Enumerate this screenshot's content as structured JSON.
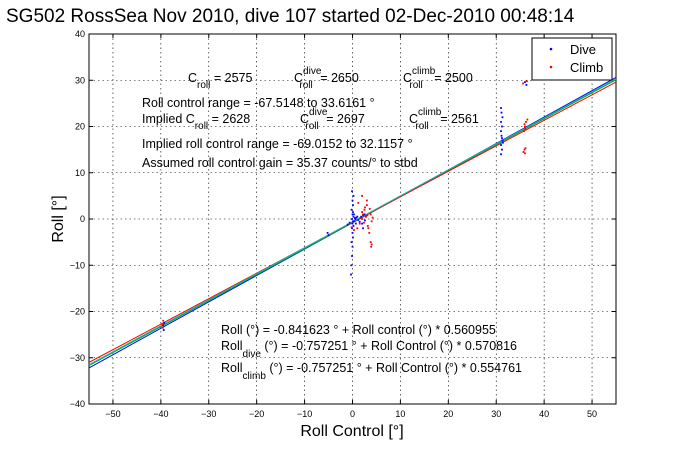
{
  "chart_data": {
    "type": "scatter",
    "title": "SG502 RossSea Nov 2010, dive 107 started 02-Dec-2010 00:48:14",
    "xlabel": "Roll Control [°]",
    "ylabel": "Roll [°]",
    "xlim": [
      -55,
      55
    ],
    "ylim": [
      -40,
      40
    ],
    "xticks": [
      -50,
      -40,
      -30,
      -20,
      -10,
      0,
      10,
      20,
      30,
      40,
      50
    ],
    "yticks": [
      -40,
      -30,
      -20,
      -10,
      0,
      10,
      20,
      30,
      40
    ],
    "grid": true,
    "legend": {
      "placement": "top-right",
      "entries": [
        {
          "name": "Dive",
          "color": "#0000ff"
        },
        {
          "name": "Climb",
          "color": "#ff0000"
        }
      ]
    },
    "annotations": {
      "c_roll": {
        "sym": "C",
        "sub": "roll",
        "value": " = 2575"
      },
      "c_roll_dive": {
        "sym": "C",
        "sup": "dive",
        "sub": "roll",
        "value": " = 2650"
      },
      "c_roll_climb": {
        "sym": "C",
        "sup": "climb",
        "sub": "roll",
        "value": " = 2500"
      },
      "range": "Roll control range = -67.5148 to 33.6161 °",
      "implied_prefix": "Implied C",
      "implied_sub": "roll",
      "implied_value": " = 2628",
      "implied_dive": {
        "sym": "C",
        "sup": "dive",
        "sub": "roll",
        "value": " = 2697"
      },
      "implied_climb": {
        "sym": "C",
        "sup": "climb",
        "sub": "roll",
        "value": " = 2561"
      },
      "implied_range": "Implied roll control range = -69.0152 to 32.1157 °",
      "gain": "Assumed roll control gain = 35.37 counts/° to stbd",
      "fit_all": "Roll (°) = -0.841623 ° + Roll control (°) * 0.560955",
      "fit_dive": {
        "sym": "Roll",
        "sub": "dive",
        "rest": " (°) = -0.757251 ° + Roll Control (°) * 0.570816"
      },
      "fit_climb": {
        "sym": "Roll",
        "sub": "climb",
        "rest": " (°) = -0.757251 ° + Roll Control (°) * 0.554761"
      }
    },
    "fit_lines": [
      {
        "color": "#0000ff",
        "points": [
          [
            -55,
            -32.2
          ],
          [
            55,
            30.6
          ]
        ]
      },
      {
        "color": "#00aa00",
        "points": [
          [
            -55,
            -31.7
          ],
          [
            55,
            30.1
          ]
        ]
      },
      {
        "color": "#ff0000",
        "points": [
          [
            -55,
            -31.0
          ],
          [
            55,
            29.6
          ]
        ]
      },
      {
        "color": "#00bfbf",
        "points": [
          [
            -55,
            -31.5
          ],
          [
            55,
            30.3
          ]
        ]
      }
    ],
    "series": [
      {
        "name": "Dive",
        "color": "#0000ff",
        "points": [
          [
            -0.3,
            -12
          ],
          [
            -0.2,
            -10
          ],
          [
            -0.1,
            -8
          ],
          [
            0,
            -6
          ],
          [
            -0.2,
            -5
          ],
          [
            0.1,
            -4
          ],
          [
            0,
            -3
          ],
          [
            -0.1,
            -2
          ],
          [
            0.2,
            -1.5
          ],
          [
            0,
            -1
          ],
          [
            0.1,
            -0.5
          ],
          [
            -0.1,
            0
          ],
          [
            0.2,
            0.5
          ],
          [
            0,
            1
          ],
          [
            0.1,
            1.5
          ],
          [
            -0.2,
            2
          ],
          [
            0.1,
            3
          ],
          [
            0,
            4
          ],
          [
            0.2,
            5
          ],
          [
            -0.1,
            6
          ],
          [
            0.4,
            -0.5
          ],
          [
            0.6,
            0
          ],
          [
            0.8,
            0.3
          ],
          [
            1,
            0.5
          ],
          [
            0.3,
            1
          ],
          [
            0.7,
            -1
          ],
          [
            1.2,
            -0.2
          ],
          [
            0.5,
            0.2
          ],
          [
            1.8,
            0.5
          ],
          [
            2.0,
            -1
          ],
          [
            2.2,
            -2
          ],
          [
            2.5,
            1
          ],
          [
            2.8,
            0.5
          ],
          [
            2.6,
            -0.3
          ],
          [
            1.5,
            -0.6
          ],
          [
            2.2,
            0.8
          ],
          [
            -0.6,
            -0.8
          ],
          [
            -1.0,
            -1.2
          ],
          [
            -5,
            -3.5
          ],
          [
            -5.2,
            -3.0
          ],
          [
            31,
            14
          ],
          [
            31.2,
            15
          ],
          [
            31,
            16
          ],
          [
            31.3,
            17
          ],
          [
            31.1,
            18
          ],
          [
            31,
            19
          ],
          [
            31.2,
            20
          ],
          [
            31,
            21
          ],
          [
            31.3,
            22
          ],
          [
            31.1,
            23
          ],
          [
            31,
            24
          ],
          [
            31.2,
            17.5
          ],
          [
            31.4,
            16.5
          ],
          [
            -39.3,
            -22.5
          ],
          [
            -39.5,
            -23
          ],
          [
            -39.4,
            -24
          ],
          [
            36,
            29.6
          ],
          [
            36.3,
            29
          ]
        ]
      },
      {
        "name": "Climb",
        "color": "#ff0000",
        "points": [
          [
            1,
            -2
          ],
          [
            1.5,
            -1
          ],
          [
            2,
            0
          ],
          [
            2.2,
            1
          ],
          [
            2.5,
            2
          ],
          [
            3,
            3
          ],
          [
            3.2,
            -1.5
          ],
          [
            3.5,
            -3
          ],
          [
            2.8,
            0.5
          ],
          [
            3.8,
            1
          ],
          [
            4,
            -0.5
          ],
          [
            2.6,
            2.5
          ],
          [
            3,
            4
          ],
          [
            3.3,
            -2
          ],
          [
            2,
            1.5
          ],
          [
            1.6,
            0.2
          ],
          [
            3.1,
            0.8
          ],
          [
            2.4,
            -0.8
          ],
          [
            3.6,
            2.2
          ],
          [
            4.2,
            0.3
          ],
          [
            3.8,
            -5
          ],
          [
            3.9,
            -6
          ],
          [
            4.0,
            -5.5
          ],
          [
            1.2,
            3.5
          ],
          [
            2.0,
            5
          ],
          [
            -0.2,
            -1.8
          ],
          [
            0.3,
            -2.4
          ],
          [
            35.7,
            14.5
          ],
          [
            35.9,
            15
          ],
          [
            36,
            14.2
          ],
          [
            36.1,
            15.3
          ],
          [
            35.8,
            19
          ],
          [
            36,
            20
          ],
          [
            36.2,
            21
          ],
          [
            36.5,
            21.5
          ],
          [
            35.9,
            20.5
          ],
          [
            36.1,
            19.5
          ],
          [
            -39.5,
            -22
          ],
          [
            -39.7,
            -22.8
          ],
          [
            -39.6,
            -23.5
          ],
          [
            36.4,
            29.8
          ],
          [
            35.6,
            29.3
          ]
        ]
      }
    ]
  }
}
